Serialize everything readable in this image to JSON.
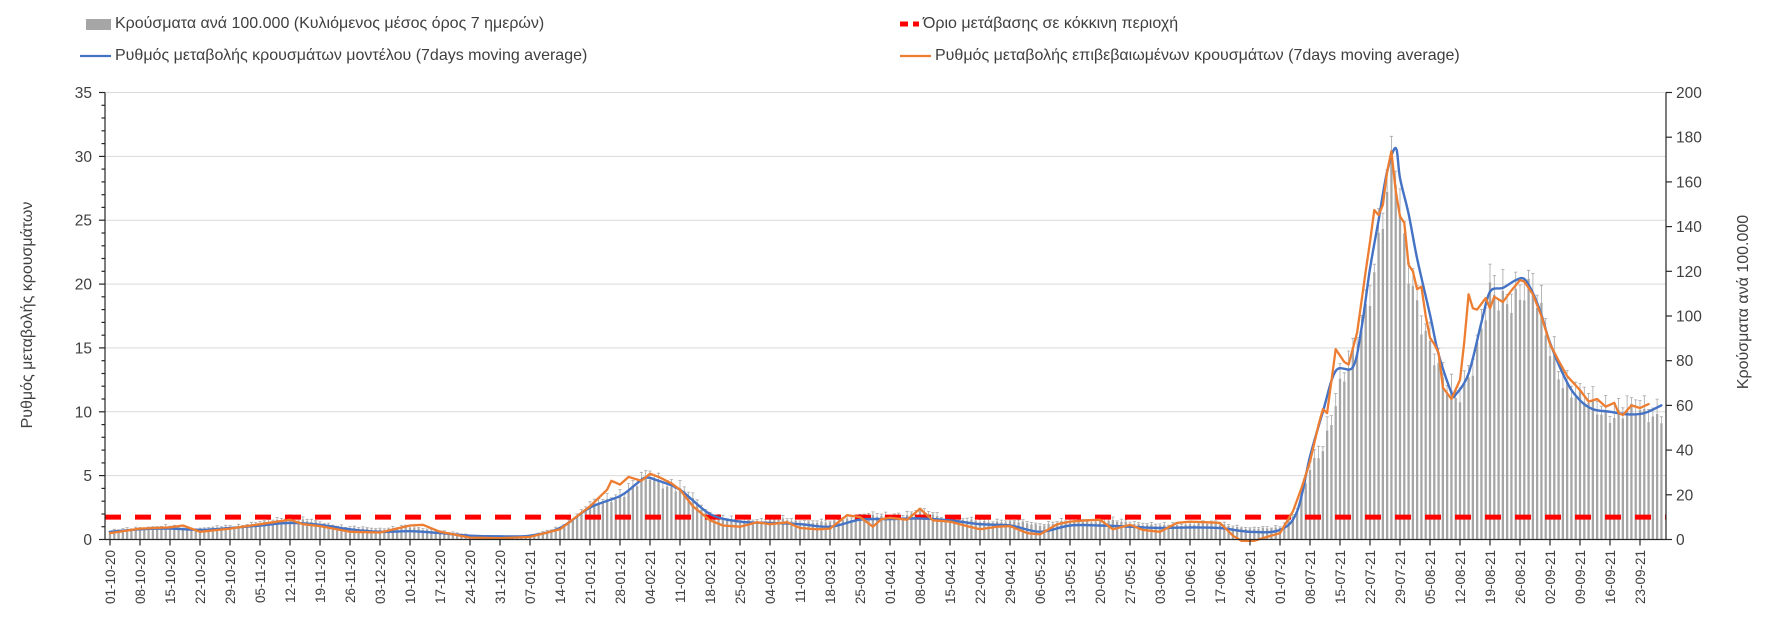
{
  "legend": {
    "items": [
      {
        "id": "cases_bars",
        "label": "Κρούσματα ανά 100.000 (Κυλιόμενος μέσος όρος 7 ημερών)",
        "swatch": "bar",
        "color": "#A6A6A6"
      },
      {
        "id": "threshold",
        "label": "Όριο μετάβασης σε κόκκινη περιοχή",
        "swatch": "dashed-line",
        "color": "#FF0000"
      },
      {
        "id": "model_rate",
        "label": "Ρυθμός μεταβολής κρουσμάτων μοντέλου (7days moving average)",
        "swatch": "line",
        "color": "#4472C4"
      },
      {
        "id": "confirmed_rate",
        "label": "Ρυθμός μεταβολής επιβεβαιωμένων κρουσμάτων (7days moving average)",
        "swatch": "line",
        "color": "#ED7D31"
      }
    ]
  },
  "chart_data": {
    "type": "combo-bar-line",
    "x_axis": {
      "unit": "date (daily data, weekly tick labels)",
      "tick_labels": [
        "01-10-20",
        "08-10-20",
        "15-10-20",
        "22-10-20",
        "29-10-20",
        "05-11-20",
        "12-11-20",
        "19-11-20",
        "26-11-20",
        "03-12-20",
        "10-12-20",
        "17-12-20",
        "24-12-20",
        "31-12-20",
        "07-01-21",
        "14-01-21",
        "21-01-21",
        "28-01-21",
        "04-02-21",
        "11-02-21",
        "18-02-21",
        "25-02-21",
        "04-03-21",
        "11-03-21",
        "18-03-21",
        "25-03-21",
        "01-04-21",
        "08-04-21",
        "15-04-21",
        "22-04-21",
        "29-04-21",
        "06-05-21",
        "13-05-21",
        "20-05-21",
        "27-05-21",
        "03-06-21",
        "10-06-21",
        "17-06-21",
        "24-06-21",
        "01-07-21",
        "08-07-21",
        "15-07-21",
        "22-07-21",
        "29-07-21",
        "05-08-21",
        "12-08-21",
        "19-08-21",
        "26-08-21",
        "02-09-21",
        "09-09-21",
        "16-09-21",
        "23-09-21"
      ],
      "days_per_tick": 7,
      "total_days": 363
    },
    "left_axis": {
      "title": "Ρυθμός μεταβολής κρουσμάτων",
      "range": [
        0,
        35
      ],
      "ticks": [
        0,
        5,
        10,
        15,
        20,
        25,
        30,
        35
      ],
      "gridlines": true
    },
    "right_axis": {
      "title": "Κρούσματα ανά 100.000",
      "range": [
        0,
        200
      ],
      "ticks": [
        0,
        20,
        40,
        60,
        80,
        100,
        120,
        140,
        160,
        180,
        200
      ]
    },
    "threshold": {
      "label": "Όριο μετάβασης σε κόκκινη περιοχή",
      "axis": "right",
      "value": 10,
      "style": "dashed",
      "color": "#FF0000"
    },
    "series": [
      {
        "name": "Κρούσματα ανά 100.000 (Κυλιόμενος μέσος όρος 7 ημερών)",
        "type": "bar",
        "axis": "right",
        "color": "#A6A6A6",
        "points": [
          [
            0,
            3.5
          ],
          [
            7,
            5
          ],
          [
            14,
            5.5
          ],
          [
            21,
            4.5
          ],
          [
            28,
            5.5
          ],
          [
            35,
            7
          ],
          [
            42,
            9.5
          ],
          [
            49,
            7
          ],
          [
            56,
            5
          ],
          [
            63,
            4.5
          ],
          [
            70,
            5.5
          ],
          [
            77,
            3.5
          ],
          [
            84,
            1.8
          ],
          [
            91,
            1.2
          ],
          [
            98,
            1.5
          ],
          [
            105,
            5
          ],
          [
            112,
            14.5
          ],
          [
            119,
            19.5
          ],
          [
            126,
            27.5
          ],
          [
            133,
            22
          ],
          [
            140,
            11
          ],
          [
            147,
            7.5
          ],
          [
            154,
            9
          ],
          [
            161,
            8
          ],
          [
            168,
            7.5
          ],
          [
            175,
            10.5
          ],
          [
            182,
            10
          ],
          [
            189,
            12
          ],
          [
            196,
            9
          ],
          [
            203,
            8
          ],
          [
            210,
            8
          ],
          [
            217,
            6.5
          ],
          [
            224,
            8
          ],
          [
            231,
            8.5
          ],
          [
            238,
            7.5
          ],
          [
            245,
            6
          ],
          [
            252,
            7
          ],
          [
            259,
            7
          ],
          [
            266,
            4.5
          ],
          [
            273,
            5.5
          ],
          [
            277,
            12
          ],
          [
            280,
            31
          ],
          [
            283,
            42
          ],
          [
            285,
            55
          ],
          [
            287,
            68
          ],
          [
            289,
            74
          ],
          [
            291,
            84
          ],
          [
            293,
            103
          ],
          [
            295,
            125
          ],
          [
            297,
            148
          ],
          [
            299,
            158
          ],
          [
            300,
            159
          ],
          [
            301,
            138
          ],
          [
            303,
            120
          ],
          [
            305,
            108
          ],
          [
            308,
            88
          ],
          [
            311,
            68
          ],
          [
            313,
            63
          ],
          [
            314,
            62
          ],
          [
            316,
            70
          ],
          [
            318,
            80
          ],
          [
            320,
            93
          ],
          [
            322,
            106
          ],
          [
            324,
            104
          ],
          [
            326,
            108
          ],
          [
            328,
            112
          ],
          [
            330,
            113
          ],
          [
            332,
            108
          ],
          [
            334,
            97
          ],
          [
            336,
            84
          ],
          [
            340,
            69
          ],
          [
            343,
            62
          ],
          [
            346,
            58
          ],
          [
            350,
            57
          ],
          [
            354,
            56
          ],
          [
            358,
            56
          ],
          [
            362,
            57
          ]
        ]
      },
      {
        "name": "Ρυθμός μεταβολής κρουσμάτων μοντέλου (7days moving average)",
        "type": "line",
        "axis": "left",
        "color": "#4472C4",
        "points": [
          [
            0,
            0.6
          ],
          [
            7,
            0.8
          ],
          [
            14,
            0.85
          ],
          [
            21,
            0.75
          ],
          [
            28,
            0.9
          ],
          [
            35,
            1.1
          ],
          [
            42,
            1.3
          ],
          [
            49,
            1.15
          ],
          [
            56,
            0.8
          ],
          [
            63,
            0.6
          ],
          [
            70,
            0.65
          ],
          [
            77,
            0.5
          ],
          [
            84,
            0.3
          ],
          [
            91,
            0.25
          ],
          [
            98,
            0.3
          ],
          [
            105,
            0.9
          ],
          [
            112,
            2.5
          ],
          [
            119,
            3.4
          ],
          [
            123,
            4.4
          ],
          [
            125,
            4.85
          ],
          [
            128,
            4.6
          ],
          [
            133,
            3.9
          ],
          [
            140,
            2.0
          ],
          [
            147,
            1.4
          ],
          [
            154,
            1.3
          ],
          [
            161,
            1.2
          ],
          [
            168,
            1.0
          ],
          [
            175,
            1.55
          ],
          [
            182,
            1.6
          ],
          [
            189,
            1.65
          ],
          [
            196,
            1.5
          ],
          [
            203,
            1.2
          ],
          [
            210,
            1.1
          ],
          [
            217,
            0.6
          ],
          [
            224,
            1.1
          ],
          [
            231,
            1.1
          ],
          [
            238,
            1.0
          ],
          [
            245,
            0.9
          ],
          [
            252,
            0.95
          ],
          [
            259,
            0.9
          ],
          [
            266,
            0.6
          ],
          [
            273,
            0.75
          ],
          [
            277,
            2.2
          ],
          [
            280,
            6.5
          ],
          [
            283,
            10.0
          ],
          [
            286,
            13.2
          ],
          [
            290,
            13.5
          ],
          [
            292,
            16.5
          ],
          [
            294,
            21.2
          ],
          [
            296,
            25.0
          ],
          [
            298,
            28.8
          ],
          [
            300,
            30.65
          ],
          [
            301,
            28.3
          ],
          [
            303,
            25.5
          ],
          [
            305,
            22.0
          ],
          [
            308,
            17.6
          ],
          [
            310,
            14.5
          ],
          [
            313,
            11.5
          ],
          [
            314,
            11.35
          ],
          [
            317,
            13.0
          ],
          [
            320,
            17.0
          ],
          [
            322,
            19.4
          ],
          [
            325,
            19.7
          ],
          [
            328,
            20.3
          ],
          [
            330,
            20.4
          ],
          [
            332,
            19.3
          ],
          [
            334,
            17.6
          ],
          [
            336,
            15.4
          ],
          [
            340,
            12.3
          ],
          [
            343,
            10.9
          ],
          [
            346,
            10.2
          ],
          [
            350,
            10.0
          ],
          [
            354,
            9.8
          ],
          [
            358,
            9.9
          ],
          [
            362,
            10.5
          ]
        ]
      },
      {
        "name": "Ρυθμός μεταβολής επιβεβαιωμένων κρουσμάτων (7days moving average)",
        "type": "line",
        "axis": "left",
        "color": "#ED7D31",
        "points": [
          [
            0,
            0.5
          ],
          [
            7,
            0.85
          ],
          [
            14,
            0.95
          ],
          [
            17,
            1.1
          ],
          [
            21,
            0.6
          ],
          [
            28,
            0.85
          ],
          [
            35,
            1.2
          ],
          [
            42,
            1.55
          ],
          [
            45,
            1.2
          ],
          [
            49,
            1.05
          ],
          [
            56,
            0.6
          ],
          [
            63,
            0.55
          ],
          [
            70,
            1.1
          ],
          [
            73,
            1.15
          ],
          [
            77,
            0.6
          ],
          [
            84,
            0.15
          ],
          [
            91,
            0.1
          ],
          [
            98,
            0.2
          ],
          [
            105,
            0.8
          ],
          [
            112,
            2.6
          ],
          [
            116,
            3.9
          ],
          [
            117,
            4.6
          ],
          [
            119,
            4.3
          ],
          [
            121,
            4.9
          ],
          [
            124,
            4.6
          ],
          [
            126,
            5.15
          ],
          [
            128,
            4.9
          ],
          [
            131,
            4.4
          ],
          [
            133,
            3.9
          ],
          [
            136,
            2.6
          ],
          [
            140,
            1.5
          ],
          [
            143,
            1.1
          ],
          [
            147,
            1.0
          ],
          [
            151,
            1.35
          ],
          [
            154,
            1.2
          ],
          [
            158,
            1.35
          ],
          [
            161,
            0.9
          ],
          [
            165,
            0.8
          ],
          [
            168,
            0.85
          ],
          [
            172,
            1.9
          ],
          [
            175,
            1.75
          ],
          [
            178,
            1.0
          ],
          [
            180,
            1.6
          ],
          [
            182,
            1.7
          ],
          [
            186,
            1.55
          ],
          [
            189,
            2.4
          ],
          [
            192,
            1.5
          ],
          [
            196,
            1.4
          ],
          [
            200,
            1.05
          ],
          [
            203,
            0.8
          ],
          [
            207,
            1.0
          ],
          [
            210,
            1.05
          ],
          [
            214,
            0.5
          ],
          [
            217,
            0.4
          ],
          [
            221,
            1.2
          ],
          [
            224,
            1.4
          ],
          [
            228,
            1.5
          ],
          [
            231,
            1.55
          ],
          [
            234,
            0.8
          ],
          [
            238,
            1.15
          ],
          [
            241,
            0.75
          ],
          [
            245,
            0.6
          ],
          [
            249,
            1.3
          ],
          [
            252,
            1.4
          ],
          [
            256,
            1.35
          ],
          [
            259,
            1.3
          ],
          [
            262,
            0.3
          ],
          [
            264,
            -0.1
          ],
          [
            267,
            -0.1
          ],
          [
            270,
            0.2
          ],
          [
            273,
            0.5
          ],
          [
            276,
            2.2
          ],
          [
            278,
            4.0
          ],
          [
            280,
            6.1
          ],
          [
            282,
            9.0
          ],
          [
            283,
            10.2
          ],
          [
            284,
            9.9
          ],
          [
            286,
            14.9
          ],
          [
            288,
            13.9
          ],
          [
            289,
            13.7
          ],
          [
            291,
            16.2
          ],
          [
            293,
            21.0
          ],
          [
            294,
            23.3
          ],
          [
            295,
            25.8
          ],
          [
            296,
            25.4
          ],
          [
            297,
            26.2
          ],
          [
            298,
            28.8
          ],
          [
            299,
            30.4
          ],
          [
            300,
            27.3
          ],
          [
            301,
            25.3
          ],
          [
            302,
            24.8
          ],
          [
            303,
            21.5
          ],
          [
            304,
            21.0
          ],
          [
            305,
            19.6
          ],
          [
            306,
            19.8
          ],
          [
            307,
            17.5
          ],
          [
            308,
            15.8
          ],
          [
            309,
            15.3
          ],
          [
            310,
            14.6
          ],
          [
            311,
            11.9
          ],
          [
            313,
            11.0
          ],
          [
            315,
            12.5
          ],
          [
            316,
            15.5
          ],
          [
            317,
            19.2
          ],
          [
            318,
            18.1
          ],
          [
            319,
            18.0
          ],
          [
            321,
            18.9
          ],
          [
            322,
            18.1
          ],
          [
            323,
            19.0
          ],
          [
            325,
            18.6
          ],
          [
            327,
            19.5
          ],
          [
            329,
            20.3
          ],
          [
            330,
            20.2
          ],
          [
            332,
            19.2
          ],
          [
            334,
            17.5
          ],
          [
            336,
            15.3
          ],
          [
            338,
            14.0
          ],
          [
            340,
            12.8
          ],
          [
            343,
            11.7
          ],
          [
            345,
            10.8
          ],
          [
            347,
            11.0
          ],
          [
            349,
            10.4
          ],
          [
            351,
            10.7
          ],
          [
            352,
            9.9
          ],
          [
            353,
            9.75
          ],
          [
            355,
            10.5
          ],
          [
            357,
            10.3
          ],
          [
            359,
            10.6
          ]
        ]
      }
    ]
  },
  "colors": {
    "bars": "#A6A6A6",
    "model_line": "#4472C4",
    "confirmed_line": "#ED7D31",
    "threshold_line": "#FF0000",
    "grid": "#D9D9D9",
    "axis": "#262626",
    "text": "#404040"
  }
}
